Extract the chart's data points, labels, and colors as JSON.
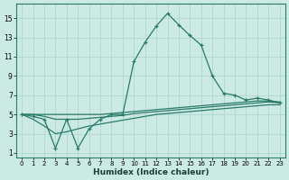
{
  "xlabel": "Humidex (Indice chaleur)",
  "bg_color": "#cceae4",
  "grid_color": "#aad4cc",
  "line_color": "#2a7a6a",
  "x_values": [
    0,
    1,
    2,
    3,
    4,
    5,
    6,
    7,
    8,
    9,
    10,
    11,
    12,
    13,
    14,
    15,
    16,
    17,
    18,
    19,
    20,
    21,
    22,
    23
  ],
  "series_main": {
    "x": [
      0,
      1,
      2,
      3,
      4,
      5,
      6,
      7,
      8,
      9,
      10,
      11,
      12,
      13,
      14,
      15,
      16,
      17,
      18,
      19,
      20,
      21,
      22,
      23
    ],
    "y": [
      5.0,
      4.8,
      4.5,
      1.5,
      4.5,
      1.5,
      3.5,
      4.5,
      5.0,
      5.0,
      10.5,
      12.5,
      14.2,
      15.5,
      14.3,
      13.2,
      12.2,
      9.0,
      7.2,
      7.0,
      6.5,
      6.7,
      6.5,
      6.2
    ]
  },
  "series_flat1": {
    "x": [
      0,
      1,
      2,
      3,
      4,
      5,
      6,
      7,
      8,
      9,
      10,
      11,
      12,
      13,
      14,
      15,
      16,
      17,
      18,
      19,
      20,
      21,
      22,
      23
    ],
    "y": [
      5.0,
      5.0,
      5.0,
      5.0,
      5.0,
      5.0,
      5.0,
      5.0,
      5.1,
      5.2,
      5.3,
      5.4,
      5.5,
      5.6,
      5.7,
      5.8,
      5.9,
      6.0,
      6.1,
      6.2,
      6.3,
      6.4,
      6.4,
      6.3
    ]
  },
  "series_flat2": {
    "x": [
      0,
      1,
      2,
      3,
      4,
      5,
      6,
      7,
      8,
      9,
      10,
      11,
      12,
      13,
      14,
      15,
      16,
      17,
      18,
      19,
      20,
      21,
      22,
      23
    ],
    "y": [
      5.0,
      5.0,
      4.8,
      4.5,
      4.5,
      4.5,
      4.6,
      4.7,
      4.8,
      4.9,
      5.1,
      5.2,
      5.3,
      5.4,
      5.5,
      5.6,
      5.7,
      5.8,
      5.9,
      6.0,
      6.1,
      6.2,
      6.3,
      6.2
    ]
  },
  "series_low": {
    "x": [
      0,
      1,
      2,
      3,
      4,
      5,
      6,
      7,
      8,
      9,
      10,
      11,
      12,
      13,
      14,
      15,
      16,
      17,
      18,
      19,
      20,
      21,
      22,
      23
    ],
    "y": [
      5.0,
      4.5,
      3.8,
      3.0,
      3.2,
      3.5,
      3.8,
      4.0,
      4.2,
      4.4,
      4.6,
      4.8,
      5.0,
      5.1,
      5.2,
      5.3,
      5.4,
      5.5,
      5.6,
      5.7,
      5.8,
      5.9,
      6.0,
      6.0
    ]
  },
  "yticks": [
    1,
    3,
    5,
    7,
    9,
    11,
    13,
    15
  ],
  "ylim": [
    0.5,
    16.5
  ],
  "xlim": [
    -0.5,
    23.5
  ]
}
